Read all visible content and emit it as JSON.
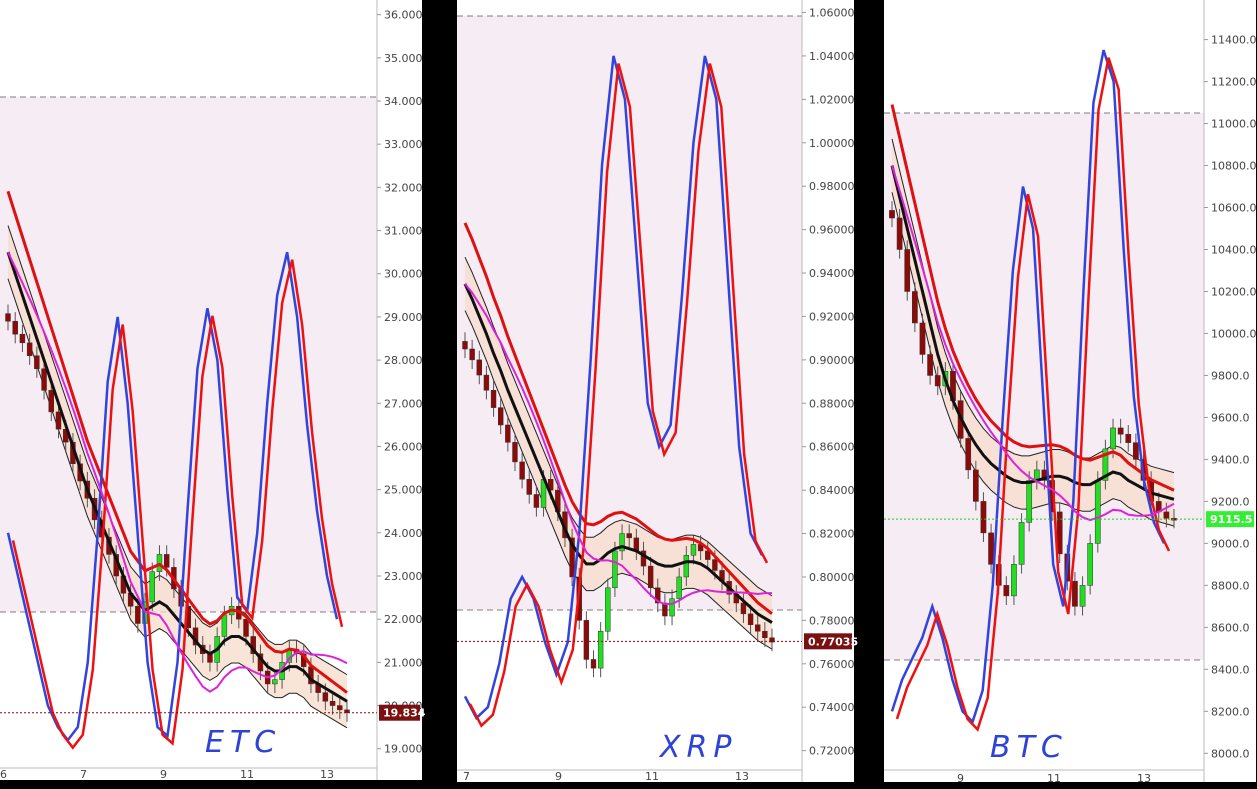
{
  "chart_data": [
    {
      "type": "candlestick",
      "symbol_label": "ETC",
      "price_badge": "19.834",
      "y_ticks": [
        "36.000",
        "35.000",
        "34.000",
        "33.000",
        "32.000",
        "31.000",
        "30.000",
        "29.000",
        "28.000",
        "27.000",
        "26.000",
        "25.000",
        "24.000",
        "23.000",
        "22.000",
        "21.000",
        "20.000",
        "19.000"
      ],
      "x_ticks": [
        "6",
        "7",
        "9",
        "11",
        "13"
      ],
      "ylim": [
        18.6,
        36.2
      ],
      "last_price": 19.834,
      "colors": {
        "up": "#22dd22",
        "down": "#8b0a0a",
        "badge": "#7a1010",
        "ma": "#111111",
        "fast": "#dd1111",
        "oscA": "#3344dd",
        "oscB": "#ee1111",
        "signal": "#dd22dd"
      },
      "candles_close": [
        28.9,
        28.6,
        28.4,
        28.1,
        27.8,
        27.3,
        26.8,
        26.4,
        26.1,
        25.6,
        25.2,
        24.8,
        24.3,
        23.9,
        23.5,
        23.0,
        22.6,
        22.3,
        21.9,
        22.4,
        23.1,
        23.5,
        23.2,
        22.7,
        22.3,
        21.8,
        21.4,
        21.2,
        21.0,
        21.6,
        22.1,
        22.3,
        22.0,
        21.6,
        21.2,
        20.8,
        20.5,
        20.6,
        21.0,
        21.3,
        21.2,
        20.9,
        20.5,
        20.3,
        20.1,
        20.0,
        19.9,
        19.834
      ],
      "ma_line": [
        30.5,
        30.0,
        29.5,
        29.0,
        28.5,
        28.0,
        27.5,
        27.0,
        26.5,
        26.0,
        25.5,
        25.0,
        24.6,
        24.2,
        23.8,
        23.4,
        23.0,
        22.6,
        22.4,
        22.2,
        22.3,
        22.4,
        22.3,
        22.1,
        21.9,
        21.7,
        21.5,
        21.3,
        21.2,
        21.3,
        21.5,
        21.6,
        21.6,
        21.5,
        21.3,
        21.1,
        20.9,
        20.8,
        20.8,
        20.9,
        20.9,
        20.8,
        20.6,
        20.5,
        20.4,
        20.3,
        20.2,
        20.1
      ],
      "osc_a": [
        24.0,
        23.0,
        22.0,
        21.0,
        20.0,
        19.5,
        19.2,
        19.5,
        21.0,
        24.0,
        27.5,
        29.0,
        27.0,
        24.0,
        21.0,
        19.5,
        19.3,
        21.0,
        24.5,
        27.8,
        29.2,
        28.0,
        25.0,
        22.5,
        22.2,
        24.0,
        27.0,
        29.5,
        30.5,
        29.0,
        26.5,
        24.5,
        23.0,
        22.0
      ]
    },
    {
      "type": "candlestick",
      "symbol_label": "XRP",
      "price_badge": "0.77035",
      "y_ticks": [
        "1.06000",
        "1.04000",
        "1.02000",
        "1.00000",
        "0.98000",
        "0.96000",
        "0.94000",
        "0.92000",
        "0.90000",
        "0.88000",
        "0.86000",
        "0.84000",
        "0.82000",
        "0.80000",
        "0.78000",
        "0.76000",
        "0.74000",
        "0.72000"
      ],
      "x_ticks": [
        "7",
        "9",
        "11",
        "13"
      ],
      "ylim": [
        0.712,
        1.063
      ],
      "last_price": 0.77035,
      "colors": {
        "up": "#22dd22",
        "down": "#8b0a0a",
        "badge": "#7a1010",
        "ma": "#111111",
        "fast": "#dd1111",
        "oscA": "#3344dd",
        "oscB": "#ee1111",
        "signal": "#dd22dd"
      },
      "candles_close": [
        0.905,
        0.9,
        0.893,
        0.886,
        0.878,
        0.87,
        0.862,
        0.853,
        0.845,
        0.838,
        0.832,
        0.845,
        0.84,
        0.83,
        0.818,
        0.8,
        0.78,
        0.762,
        0.758,
        0.775,
        0.795,
        0.812,
        0.82,
        0.818,
        0.812,
        0.805,
        0.795,
        0.788,
        0.782,
        0.79,
        0.8,
        0.81,
        0.815,
        0.812,
        0.808,
        0.803,
        0.798,
        0.792,
        0.788,
        0.783,
        0.778,
        0.775,
        0.772,
        0.77
      ],
      "ma_line": [
        0.935,
        0.928,
        0.92,
        0.912,
        0.903,
        0.895,
        0.886,
        0.878,
        0.87,
        0.862,
        0.854,
        0.846,
        0.838,
        0.83,
        0.822,
        0.815,
        0.81,
        0.806,
        0.806,
        0.808,
        0.811,
        0.813,
        0.814,
        0.813,
        0.812,
        0.81,
        0.808,
        0.806,
        0.805,
        0.805,
        0.806,
        0.807,
        0.807,
        0.806,
        0.804,
        0.801,
        0.798,
        0.795,
        0.792,
        0.789,
        0.786,
        0.783,
        0.781,
        0.779
      ],
      "osc_a": [
        0.745,
        0.735,
        0.74,
        0.76,
        0.79,
        0.8,
        0.79,
        0.77,
        0.755,
        0.77,
        0.82,
        0.9,
        0.99,
        1.04,
        1.02,
        0.95,
        0.88,
        0.86,
        0.87,
        0.93,
        1.0,
        1.04,
        1.02,
        0.94,
        0.86,
        0.82,
        0.81
      ]
    },
    {
      "type": "candlestick",
      "symbol_label": "BTC",
      "price_badge": "9115.5",
      "y_ticks": [
        "11400.0",
        "11200.0",
        "11000.0",
        "10800.0",
        "10600.0",
        "10400.0",
        "10200.0",
        "10000.0",
        "9800.0",
        "9600.0",
        "9400.0",
        "9200.0",
        "9000.0",
        "8800.0",
        "8600.0",
        "8400.0",
        "8200.0",
        "8000.0"
      ],
      "x_ticks": [
        "9",
        "11",
        "13"
      ],
      "ylim": [
        7930,
        11560
      ],
      "last_price": 9115.5,
      "colors": {
        "up": "#22dd22",
        "down": "#8b0a0a",
        "badge": "#33ee33",
        "ma": "#111111",
        "fast": "#dd1111",
        "oscA": "#3344dd",
        "oscB": "#ee1111",
        "signal": "#dd22dd"
      },
      "candles_close": [
        10550,
        10400,
        10200,
        10050,
        9900,
        9800,
        9750,
        9820,
        9680,
        9500,
        9350,
        9200,
        9050,
        8900,
        8800,
        8750,
        8900,
        9100,
        9300,
        9350,
        9300,
        9150,
        8950,
        8820,
        8700,
        8800,
        9000,
        9300,
        9450,
        9550,
        9520,
        9480,
        9400,
        9300,
        9200,
        9150,
        9120,
        9115.5
      ],
      "ma_line": [
        10800,
        10650,
        10500,
        10350,
        10200,
        10050,
        9900,
        9780,
        9680,
        9600,
        9530,
        9470,
        9420,
        9380,
        9350,
        9320,
        9300,
        9290,
        9290,
        9300,
        9310,
        9320,
        9320,
        9310,
        9290,
        9280,
        9280,
        9300,
        9320,
        9340,
        9330,
        9300,
        9280,
        9260,
        9240,
        9230,
        9220,
        9210
      ],
      "osc_a": [
        8200,
        8350,
        8450,
        8550,
        8700,
        8550,
        8350,
        8200,
        8150,
        8300,
        8800,
        9600,
        10300,
        10700,
        10500,
        9700,
        8900,
        8700,
        9200,
        10200,
        11100,
        11350,
        11200,
        10400,
        9700,
        9300,
        9100,
        9000
      ]
    }
  ]
}
